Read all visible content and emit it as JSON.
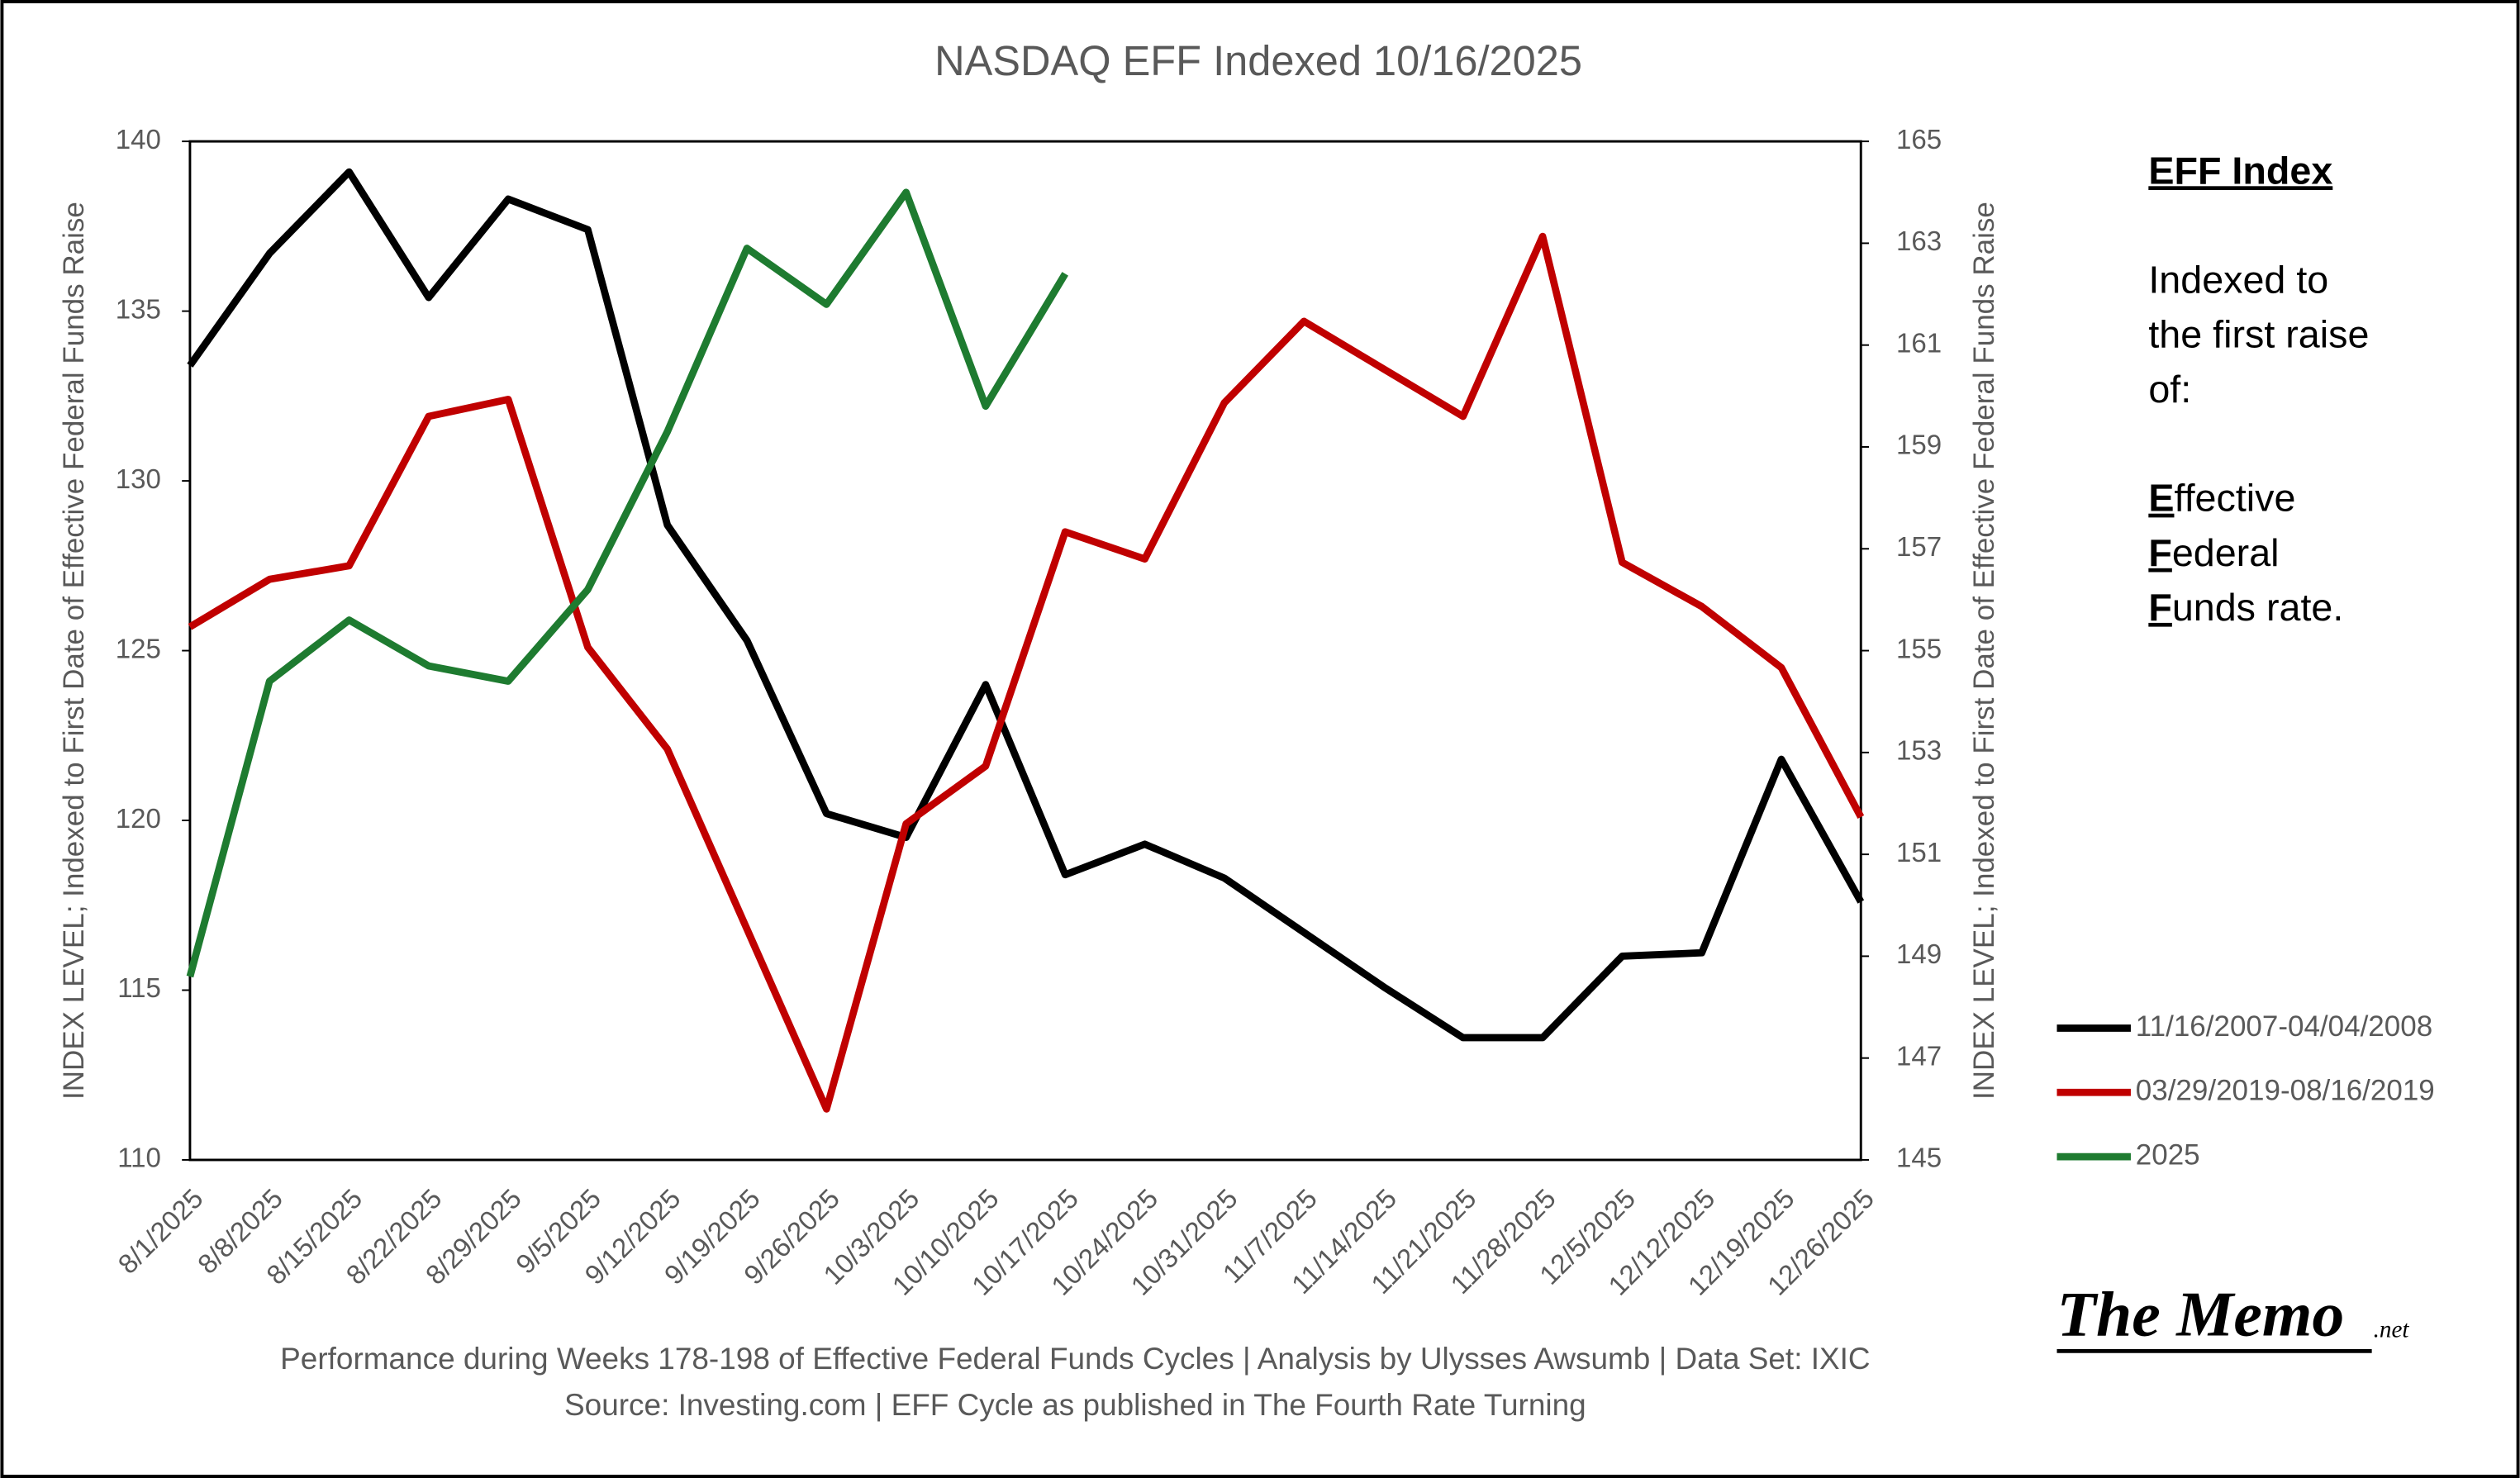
{
  "chart_data": {
    "type": "line",
    "title": "NASDAQ EFF Indexed 10/16/2025",
    "ylabel": "INDEX LEVEL; Indexed to First Date of Effective Federal Funds Raise",
    "y2label": "INDEX LEVEL; Indexed to First Date of Effective Federal Funds Raise",
    "categories": [
      "8/1/2025",
      "8/8/2025",
      "8/15/2025",
      "8/22/2025",
      "8/29/2025",
      "9/5/2025",
      "9/12/2025",
      "9/19/2025",
      "9/26/2025",
      "10/3/2025",
      "10/10/2025",
      "10/17/2025",
      "10/24/2025",
      "10/31/2025",
      "11/7/2025",
      "11/14/2025",
      "11/21/2025",
      "11/28/2025",
      "12/5/2025",
      "12/12/2025",
      "12/19/2025",
      "12/26/2025"
    ],
    "series": [
      {
        "name": "11/16/2007-04/04/2008",
        "color": "#000000",
        "values": [
          133.4,
          136.7,
          139.1,
          135.4,
          138.3,
          137.4,
          128.7,
          125.3,
          120.2,
          119.5,
          124.0,
          118.4,
          119.3,
          118.3,
          116.7,
          115.1,
          113.6,
          113.6,
          116.0,
          116.1,
          121.8,
          117.6
        ]
      },
      {
        "name": "03/29/2019-08/16/2019",
        "color": "#c00000",
        "values": [
          125.7,
          127.1,
          127.5,
          131.9,
          132.4,
          125.1,
          122.1,
          116.8,
          111.5,
          119.9,
          121.6,
          128.5,
          127.7,
          132.3,
          134.7,
          133.3,
          131.9,
          137.2,
          127.6,
          126.3,
          124.5,
          120.1
        ]
      },
      {
        "name": "2025",
        "color": "#1e7b30",
        "axis": "y2",
        "values": [
          148.6,
          154.4,
          155.6,
          154.7,
          154.4,
          156.2,
          159.3,
          162.9,
          161.8,
          164.0,
          159.8,
          162.4,
          null,
          null,
          null,
          null,
          null,
          null,
          null,
          null,
          null,
          null
        ]
      }
    ],
    "ylim": [
      110,
      140
    ],
    "yticks": [
      110,
      115,
      120,
      125,
      130,
      135,
      140
    ],
    "y2lim": [
      145,
      165
    ],
    "y2ticks": [
      145,
      147,
      149,
      151,
      153,
      155,
      157,
      159,
      161,
      163,
      165
    ],
    "grid": false,
    "legend": "right"
  },
  "footer": [
    "Performance during Weeks 178-198 of Effective Federal Funds Cycles | Analysis by Ulysses Awsumb | Data Set: IXIC",
    "Source: Investing.com | EFF Cycle as published in The Fourth Rate Turning"
  ],
  "sidebar": {
    "heading": "EFF Index",
    "text": [
      "Indexed to",
      "the first raise",
      "of:"
    ],
    "terms": [
      "Effective",
      "Federal",
      "Funds rate."
    ]
  },
  "logo": {
    "text": "The Memo",
    "suffix": ".net"
  }
}
